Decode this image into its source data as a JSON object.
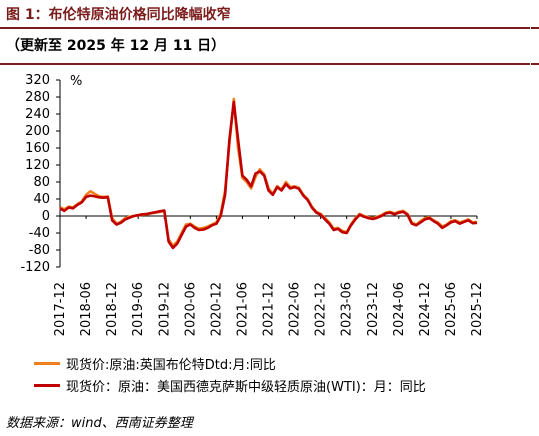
{
  "header": {
    "title": "图 1：布伦特原油价格同比降幅收窄",
    "subtitle": "（更新至 2025 年 12 月 11 日）"
  },
  "footer": {
    "source": "数据来源：wind、西南证券整理"
  },
  "colors": {
    "accent": "#7b1c1c"
  },
  "chart_data": {
    "type": "line",
    "title": "",
    "xlabel": "",
    "ylabel": "%",
    "ylim": [
      -120,
      320
    ],
    "yticks": [
      320,
      280,
      240,
      200,
      160,
      120,
      80,
      40,
      0,
      -40,
      -80,
      -120
    ],
    "xticks": [
      "2017-12",
      "2018-06",
      "2018-12",
      "2019-06",
      "2019-12",
      "2020-06",
      "2020-12",
      "2021-06",
      "2021-12",
      "2022-06",
      "2022-12",
      "2023-06",
      "2023-12",
      "2024-06",
      "2024-12",
      "2025-06",
      "2025-12"
    ],
    "grid": false,
    "legend_position": "bottom-left",
    "x": [
      "2017-12",
      "2018-01",
      "2018-02",
      "2018-03",
      "2018-04",
      "2018-05",
      "2018-06",
      "2018-07",
      "2018-08",
      "2018-09",
      "2018-10",
      "2018-11",
      "2018-12",
      "2019-01",
      "2019-02",
      "2019-03",
      "2019-04",
      "2019-05",
      "2019-06",
      "2019-07",
      "2019-08",
      "2019-09",
      "2019-10",
      "2019-11",
      "2019-12",
      "2020-01",
      "2020-02",
      "2020-03",
      "2020-04",
      "2020-05",
      "2020-06",
      "2020-07",
      "2020-08",
      "2020-09",
      "2020-10",
      "2020-11",
      "2020-12",
      "2021-01",
      "2021-02",
      "2021-03",
      "2021-04",
      "2021-05",
      "2021-06",
      "2021-07",
      "2021-08",
      "2021-09",
      "2021-10",
      "2021-11",
      "2021-12",
      "2022-01",
      "2022-02",
      "2022-03",
      "2022-04",
      "2022-05",
      "2022-06",
      "2022-07",
      "2022-08",
      "2022-09",
      "2022-10",
      "2022-11",
      "2022-12",
      "2023-01",
      "2023-02",
      "2023-03",
      "2023-04",
      "2023-05",
      "2023-06",
      "2023-07",
      "2023-08",
      "2023-09",
      "2023-10",
      "2023-11",
      "2023-12",
      "2024-01",
      "2024-02",
      "2024-03",
      "2024-04",
      "2024-05",
      "2024-06",
      "2024-07",
      "2024-08",
      "2024-09",
      "2024-10",
      "2024-11",
      "2024-12",
      "2025-01",
      "2025-02",
      "2025-03",
      "2025-04",
      "2025-05",
      "2025-06",
      "2025-07",
      "2025-08",
      "2025-09",
      "2025-10",
      "2025-11",
      "2025-12"
    ],
    "series": [
      {
        "name": "现货价:原油:英国布伦特Dtd:月:同比",
        "color": "#f07f1d",
        "values": [
          20,
          16,
          22,
          20,
          28,
          34,
          50,
          58,
          52,
          46,
          45,
          46,
          -5,
          -18,
          -14,
          -5,
          -2,
          0,
          2,
          3,
          4,
          6,
          8,
          10,
          12,
          -55,
          -70,
          -60,
          -40,
          -20,
          -18,
          -25,
          -30,
          -28,
          -25,
          -20,
          -15,
          5,
          60,
          170,
          275,
          160,
          90,
          80,
          65,
          92,
          110,
          98,
          65,
          52,
          70,
          62,
          80,
          68,
          70,
          66,
          50,
          40,
          22,
          10,
          5,
          -5,
          -15,
          -30,
          -28,
          -35,
          -38,
          -20,
          -5,
          5,
          0,
          -3,
          -5,
          -2,
          2,
          8,
          10,
          6,
          10,
          12,
          5,
          -15,
          -20,
          -12,
          -5,
          -3,
          -10,
          -15,
          -25,
          -20,
          -12,
          -10,
          -15,
          -12,
          -8,
          -15,
          -14
        ]
      },
      {
        "name": "现货价：原油：美国西德克萨斯中级轻质原油(WTI)：月：同比",
        "color": "#c00000",
        "values": [
          18,
          12,
          20,
          18,
          26,
          32,
          45,
          48,
          46,
          44,
          43,
          44,
          -10,
          -20,
          -16,
          -8,
          -4,
          0,
          2,
          4,
          5,
          7,
          9,
          11,
          13,
          -60,
          -75,
          -65,
          -45,
          -25,
          -20,
          -28,
          -33,
          -32,
          -28,
          -22,
          -18,
          0,
          50,
          180,
          268,
          180,
          95,
          85,
          70,
          100,
          105,
          95,
          60,
          50,
          68,
          60,
          75,
          65,
          68,
          64,
          48,
          38,
          20,
          8,
          3,
          -8,
          -18,
          -33,
          -30,
          -38,
          -40,
          -22,
          -8,
          3,
          -2,
          -5,
          -7,
          -4,
          0,
          6,
          8,
          4,
          8,
          10,
          3,
          -18,
          -22,
          -15,
          -8,
          -5,
          -12,
          -18,
          -28,
          -22,
          -15,
          -12,
          -18,
          -14,
          -10,
          -17,
          -16
        ]
      }
    ]
  }
}
